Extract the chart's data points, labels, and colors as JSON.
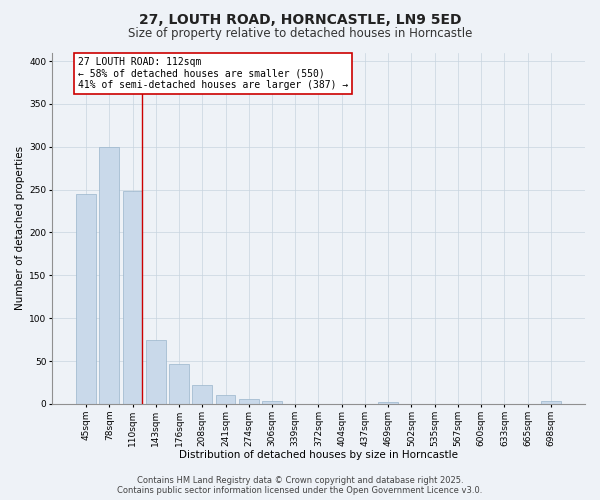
{
  "title1": "27, LOUTH ROAD, HORNCASTLE, LN9 5ED",
  "title2": "Size of property relative to detached houses in Horncastle",
  "xlabel": "Distribution of detached houses by size in Horncastle",
  "ylabel": "Number of detached properties",
  "categories": [
    "45sqm",
    "78sqm",
    "110sqm",
    "143sqm",
    "176sqm",
    "208sqm",
    "241sqm",
    "274sqm",
    "306sqm",
    "339sqm",
    "372sqm",
    "404sqm",
    "437sqm",
    "469sqm",
    "502sqm",
    "535sqm",
    "567sqm",
    "600sqm",
    "633sqm",
    "665sqm",
    "698sqm"
  ],
  "values": [
    245,
    300,
    248,
    75,
    47,
    22,
    10,
    6,
    3,
    0,
    0,
    0,
    0,
    2,
    0,
    0,
    0,
    0,
    0,
    0,
    3
  ],
  "bar_color": "#c9d9ea",
  "bar_edge_color": "#9ab5cc",
  "vline_x_index": 2,
  "vline_color": "#cc0000",
  "ylim": [
    0,
    410
  ],
  "yticks": [
    0,
    50,
    100,
    150,
    200,
    250,
    300,
    350,
    400
  ],
  "annotation_line1": "27 LOUTH ROAD: 112sqm",
  "annotation_line2": "← 58% of detached houses are smaller (550)",
  "annotation_line3": "41% of semi-detached houses are larger (387) →",
  "annotation_box_color": "#ffffff",
  "annotation_box_edge": "#cc0000",
  "background_color": "#eef2f7",
  "grid_color": "#c8d4e0",
  "footer1": "Contains HM Land Registry data © Crown copyright and database right 2025.",
  "footer2": "Contains public sector information licensed under the Open Government Licence v3.0.",
  "title1_fontsize": 10,
  "title2_fontsize": 8.5,
  "xlabel_fontsize": 7.5,
  "ylabel_fontsize": 7.5,
  "tick_fontsize": 6.5,
  "annotation_fontsize": 7,
  "footer_fontsize": 6
}
